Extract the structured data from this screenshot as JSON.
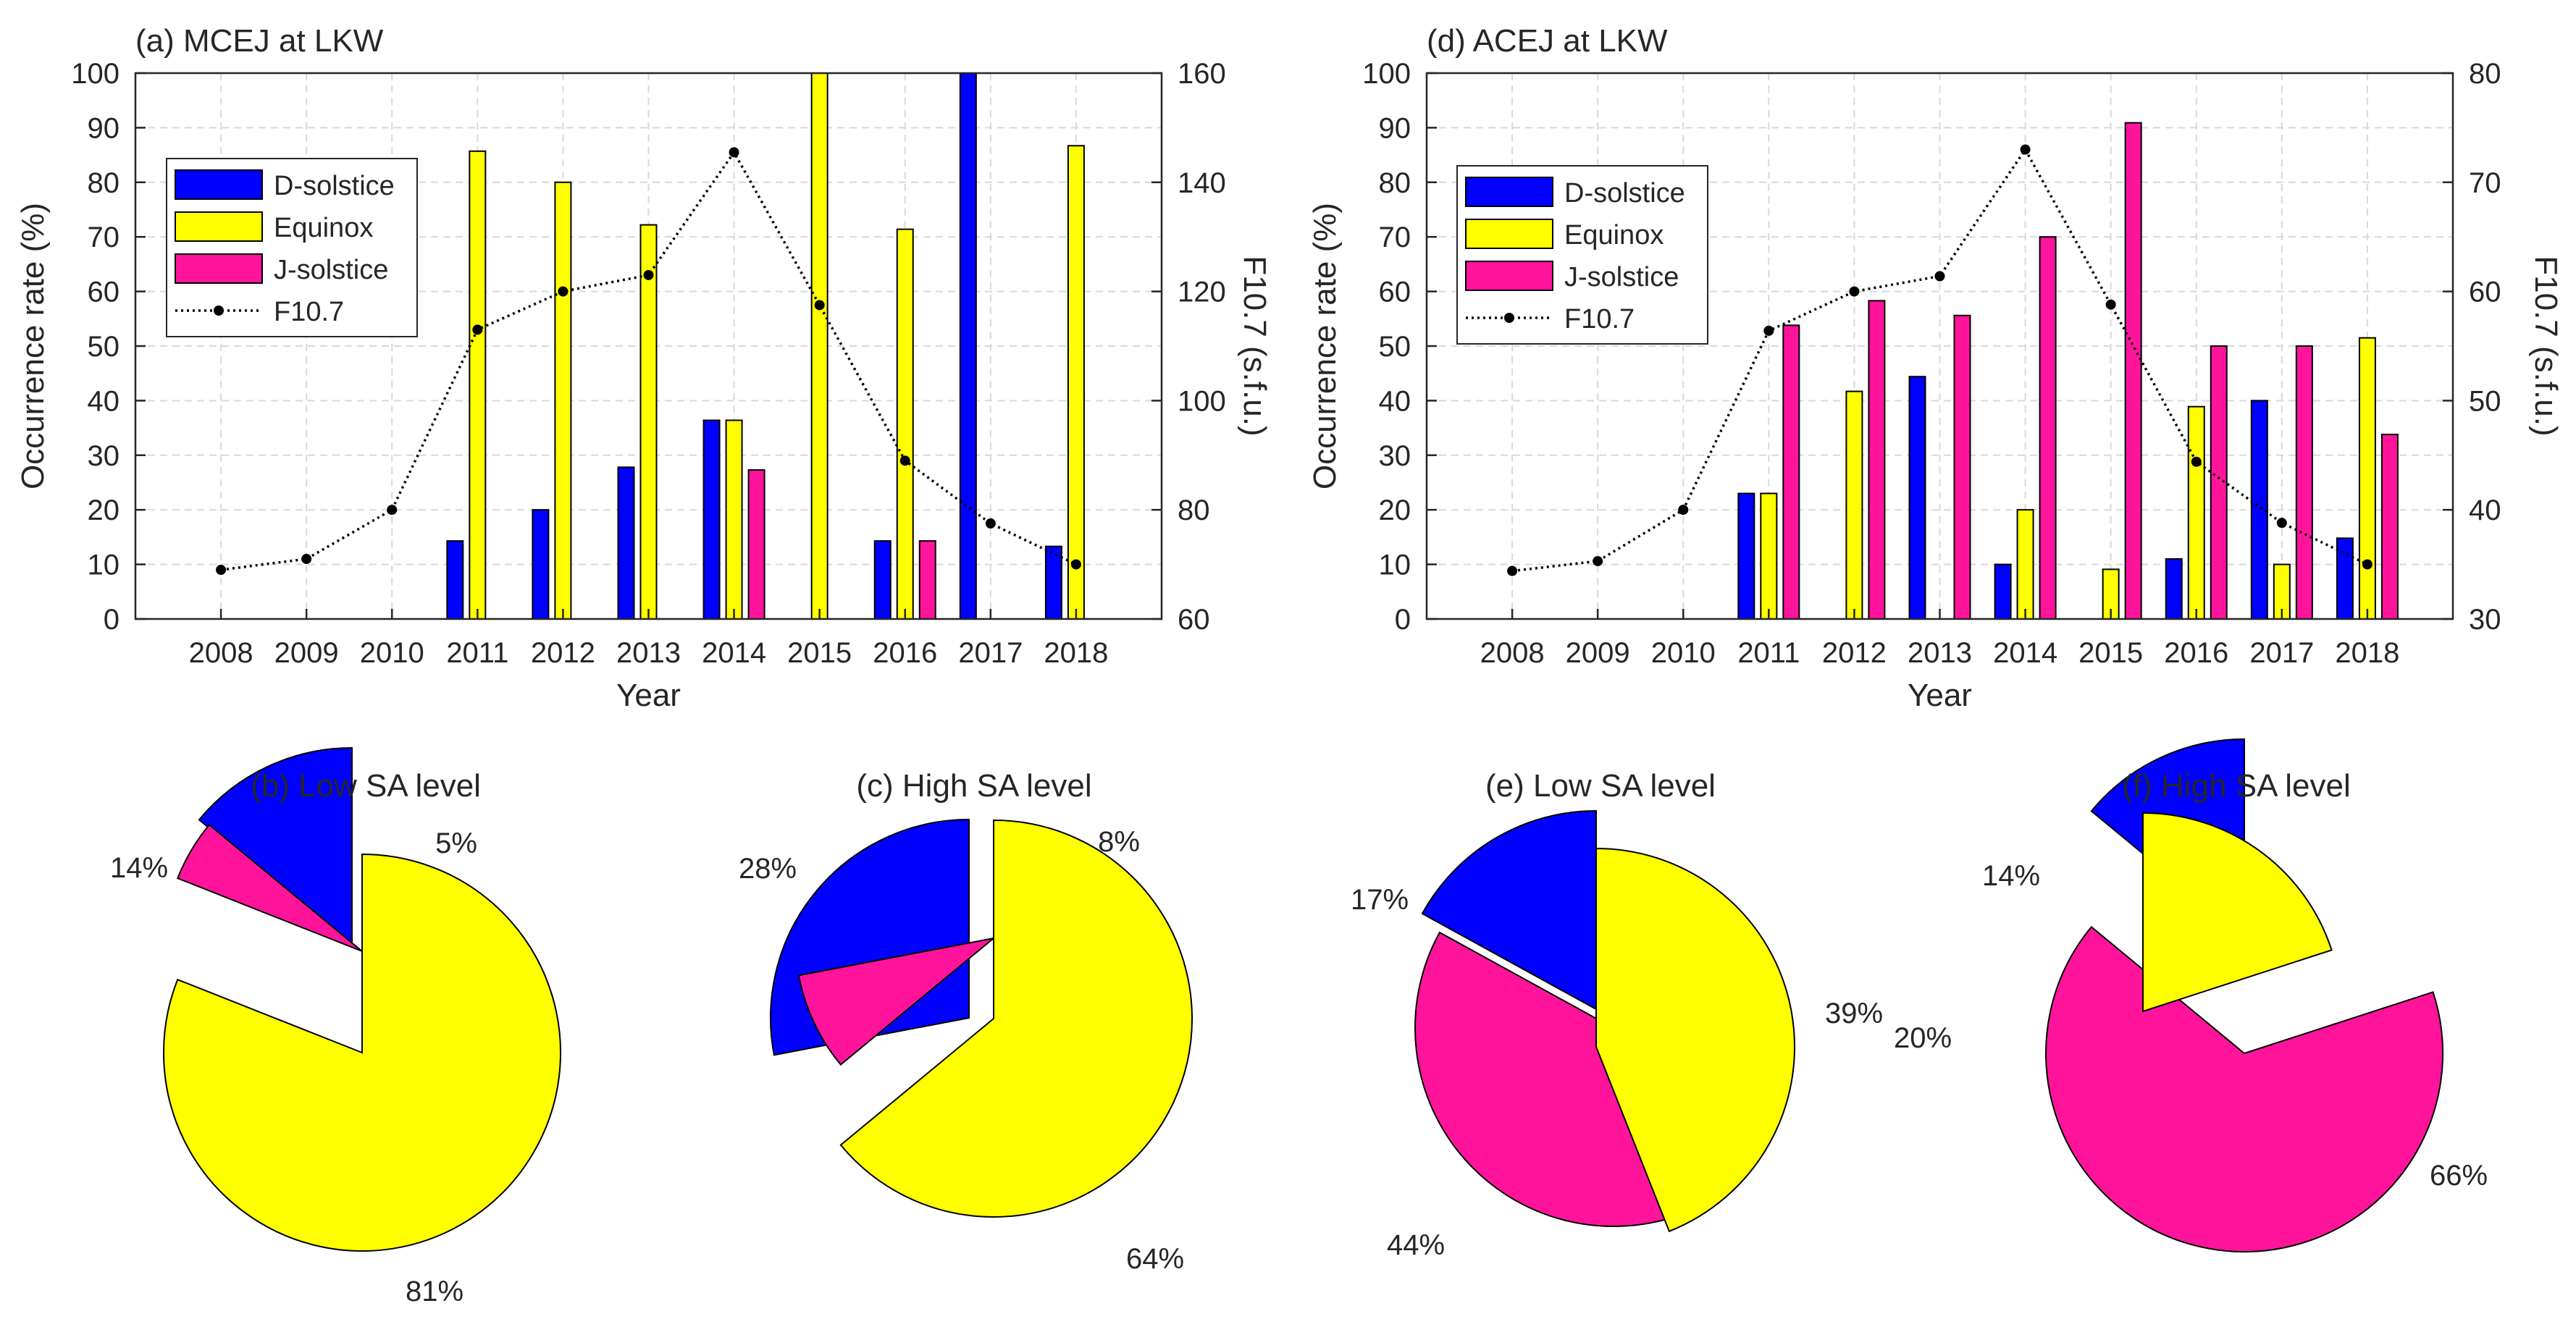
{
  "colors": {
    "d_solstice": "#0000ff",
    "equinox": "#ffff00",
    "j_solstice": "#ff149b",
    "f107": "#000000",
    "grid": "#d9d9d9",
    "axis": "#262626"
  },
  "chart_data": [
    {
      "id": "a",
      "type": "bar",
      "title": "(a) MCEJ at LKW",
      "xlabel": "Year",
      "ylabel": "Occurrence rate (%)",
      "y2label": "F10.7 (s.f.u.)",
      "categories": [
        "2008",
        "2009",
        "2010",
        "2011",
        "2012",
        "2013",
        "2014",
        "2015",
        "2016",
        "2017",
        "2018"
      ],
      "ylim": [
        0,
        100
      ],
      "y2lim": [
        60,
        160
      ],
      "yticks": [
        "0",
        "10",
        "20",
        "30",
        "40",
        "50",
        "60",
        "70",
        "80",
        "90",
        "100"
      ],
      "y2ticks": [
        "60",
        "80",
        "100",
        "120",
        "140",
        "160"
      ],
      "grid": true,
      "legend_position": "upper-left",
      "series": [
        {
          "name": "D-solstice",
          "color_key": "d_solstice",
          "values": [
            0,
            0,
            0,
            14.3,
            20,
            27.8,
            36.4,
            0,
            14.3,
            100,
            13.3
          ]
        },
        {
          "name": "Equinox",
          "color_key": "equinox",
          "values": [
            0,
            0,
            0,
            85.7,
            80,
            72.2,
            36.4,
            100,
            71.4,
            0,
            86.7
          ]
        },
        {
          "name": "J-solstice",
          "color_key": "j_solstice",
          "values": [
            0,
            0,
            0,
            0,
            0,
            0,
            27.3,
            0,
            14.3,
            0,
            0
          ]
        }
      ],
      "line": {
        "name": "F10.7",
        "color_key": "f107",
        "axis": "right",
        "values": [
          69,
          71,
          80,
          113,
          120,
          123,
          145.5,
          117.5,
          89,
          77.5,
          70
        ]
      }
    },
    {
      "id": "d",
      "type": "bar",
      "title": "(d) ACEJ at LKW",
      "xlabel": "Year",
      "ylabel": "Occurrence rate (%)",
      "y2label": "F10.7 (s.f.u.)",
      "categories": [
        "2008",
        "2009",
        "2010",
        "2011",
        "2012",
        "2013",
        "2014",
        "2015",
        "2016",
        "2017",
        "2018"
      ],
      "ylim": [
        0,
        100
      ],
      "y2lim": [
        30,
        80
      ],
      "yticks": [
        "0",
        "10",
        "20",
        "30",
        "40",
        "50",
        "60",
        "70",
        "80",
        "90",
        "100"
      ],
      "y2ticks": [
        "30",
        "40",
        "50",
        "60",
        "70",
        "80"
      ],
      "grid": true,
      "legend_position": "upper-left",
      "series": [
        {
          "name": "D-solstice",
          "color_key": "d_solstice",
          "values": [
            0,
            0,
            0,
            23,
            0,
            44.4,
            10,
            0,
            11,
            40,
            14.8
          ]
        },
        {
          "name": "Equinox",
          "color_key": "equinox",
          "values": [
            0,
            0,
            0,
            23,
            41.7,
            0,
            20,
            9.1,
            38.9,
            10,
            51.5
          ]
        },
        {
          "name": "J-solstice",
          "color_key": "j_solstice",
          "values": [
            0,
            0,
            0,
            53.8,
            58.3,
            55.6,
            70,
            90.9,
            50,
            50,
            33.8
          ]
        }
      ],
      "line": {
        "name": "F10.7",
        "color_key": "f107",
        "axis": "right",
        "values": [
          34.4,
          35.3,
          40,
          56.4,
          60,
          61.4,
          73,
          58.8,
          44.4,
          38.8,
          35
        ]
      }
    },
    {
      "id": "b",
      "type": "pie",
      "title": "(b) Low SA level",
      "slices": [
        {
          "name": "D-solstice",
          "color_key": "d_solstice",
          "value": 14,
          "label": "14%"
        },
        {
          "name": "J-solstice",
          "color_key": "j_solstice",
          "value": 5,
          "label": "5%"
        },
        {
          "name": "Equinox",
          "color_key": "equinox",
          "value": 81,
          "label": "81%"
        }
      ]
    },
    {
      "id": "c",
      "type": "pie",
      "title": "(c) High SA level",
      "slices": [
        {
          "name": "D-solstice",
          "color_key": "d_solstice",
          "value": 28,
          "label": "28%"
        },
        {
          "name": "J-solstice",
          "color_key": "j_solstice",
          "value": 8,
          "label": "8%"
        },
        {
          "name": "Equinox",
          "color_key": "equinox",
          "value": 64,
          "label": "64%"
        }
      ]
    },
    {
      "id": "e",
      "type": "pie",
      "title": "(e) Low SA level",
      "slices": [
        {
          "name": "D-solstice",
          "color_key": "d_solstice",
          "value": 17,
          "label": "17%"
        },
        {
          "name": "J-solstice",
          "color_key": "j_solstice",
          "value": 39,
          "label": "39%"
        },
        {
          "name": "Equinox",
          "color_key": "equinox",
          "value": 44,
          "label": "44%"
        }
      ]
    },
    {
      "id": "f",
      "type": "pie",
      "title": "(f) High SA level",
      "slices": [
        {
          "name": "D-solstice",
          "color_key": "d_solstice",
          "value": 14,
          "label": "14%"
        },
        {
          "name": "J-solstice",
          "color_key": "j_solstice",
          "value": 66,
          "label": "66%"
        },
        {
          "name": "Equinox",
          "color_key": "equinox",
          "value": 20,
          "label": "20%"
        }
      ]
    }
  ]
}
